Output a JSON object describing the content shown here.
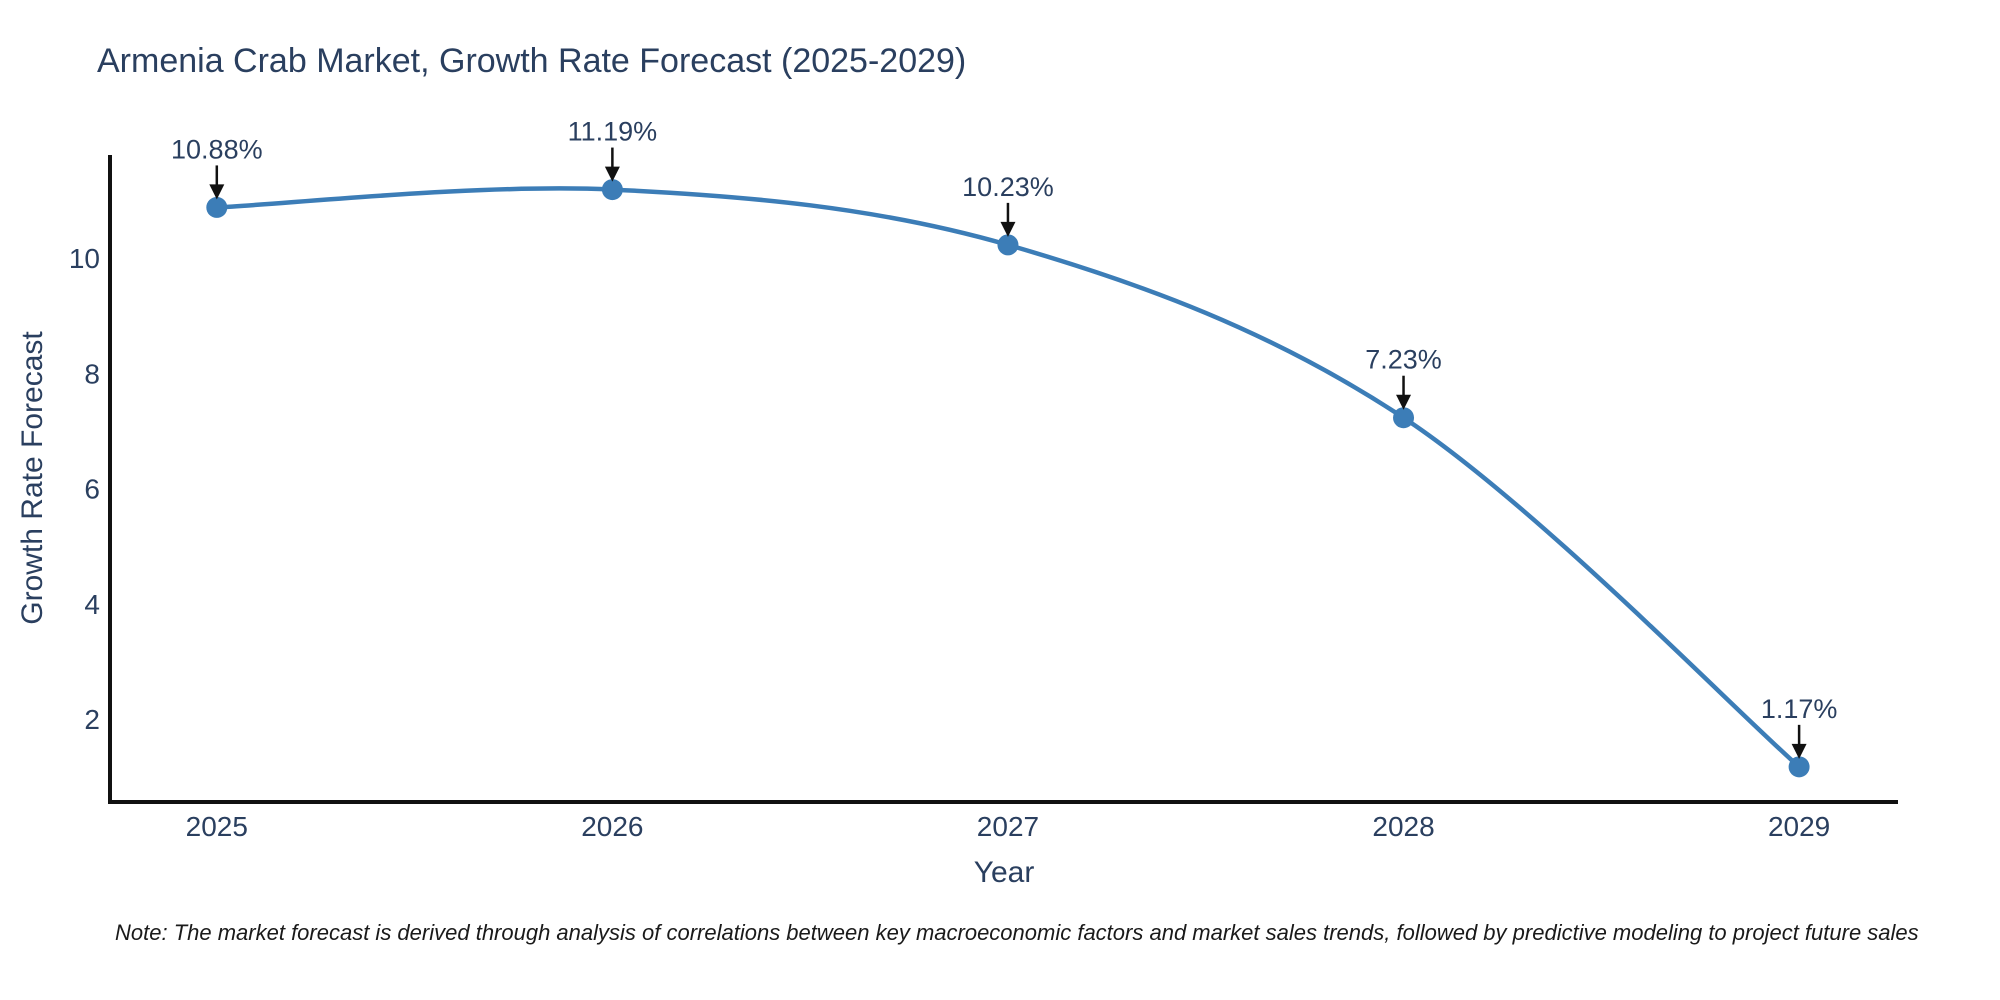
{
  "note": "Note: The market forecast is derived through analysis of correlations between key macroeconomic factors and market sales trends, followed by predictive modeling to project future sales",
  "chart_data": {
    "type": "line",
    "title": "Armenia Crab Market, Growth Rate Forecast (2025-2029)",
    "xlabel": "Year",
    "ylabel": "Growth Rate Forecast",
    "x": [
      2025,
      2026,
      2027,
      2028,
      2029
    ],
    "categories": [
      "2025",
      "2026",
      "2027",
      "2028",
      "2029"
    ],
    "series": [
      {
        "name": "Growth Rate Forecast",
        "values": [
          10.88,
          11.19,
          10.23,
          7.23,
          1.17
        ]
      }
    ],
    "point_labels": [
      "10.88%",
      "11.19%",
      "10.23%",
      "7.23%",
      "1.17%"
    ],
    "yticks": [
      2,
      4,
      6,
      8,
      10
    ],
    "xlim": [
      2024.73,
      2029.25
    ],
    "ylim": [
      0.56,
      11.79
    ],
    "grid": false,
    "legend": "none",
    "line_shape": "spline",
    "colors": {
      "line": "#3c7db7",
      "marker": "#3c7db7",
      "axis": "#111111",
      "arrow": "#111111",
      "text": "#2a3f5f"
    }
  }
}
